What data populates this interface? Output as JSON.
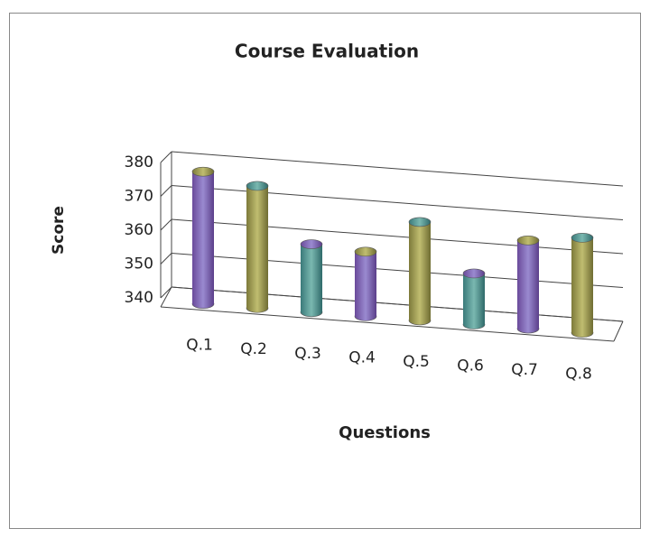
{
  "chart_data": {
    "type": "bar",
    "title": "Course Evaluation",
    "x_label": "Questions",
    "y_label": "Score",
    "categories": [
      "Q.1",
      "Q.2",
      "Q.3",
      "Q.4",
      "Q.5",
      "Q.6",
      "Q.7",
      "Q.8"
    ],
    "values": [
      378,
      375,
      359,
      358,
      368,
      354,
      365,
      367
    ],
    "ylim": [
      340,
      380
    ],
    "yticks": [
      340,
      350,
      360,
      370,
      380
    ],
    "grid": true
  }
}
